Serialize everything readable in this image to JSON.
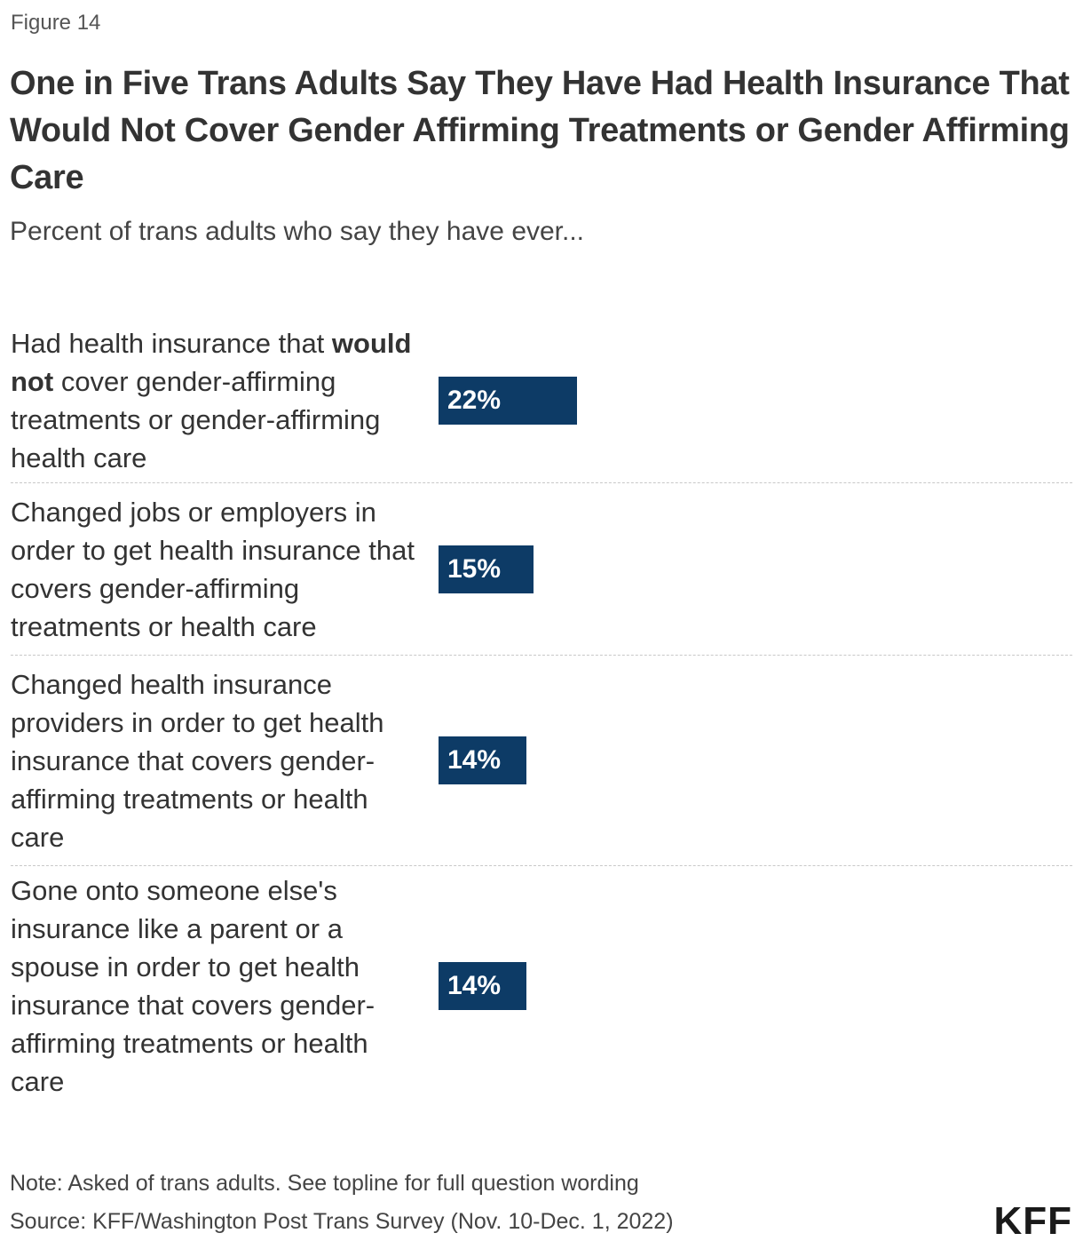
{
  "figure_label": "Figure 14",
  "title": "One in Five Trans Adults Say They Have Had Health Insurance That Would Not Cover Gender Affirming Treatments or Gender Affirming Care",
  "subtitle": "Percent of trans adults who say they have ever...",
  "chart_data": {
    "type": "bar",
    "orientation": "horizontal",
    "title": "One in Five Trans Adults Say They Have Had Health Insurance That Would Not Cover Gender Affirming Treatments or Gender Affirming Care",
    "subtitle": "Percent of trans adults who say they have ever...",
    "categories": [
      "Had health insurance that would not cover gender-affirming treatments or gender-affirming health care",
      "Changed jobs or employers in order to get health insurance that covers gender-affirming treatments or health care",
      "Changed health insurance providers in order to get health insurance that covers gender-affirming treatments or health care",
      "Gone onto someone else's insurance like a parent or a spouse in order to get health insurance that covers gender-affirming treatments or health care"
    ],
    "values": [
      22,
      15,
      14,
      14
    ],
    "value_labels": [
      "22%",
      "15%",
      "14%",
      "14%"
    ],
    "xlim": [
      0,
      100
    ],
    "grid": false,
    "legend": "none",
    "bar_color": "#0d3b66"
  },
  "label_parts": [
    {
      "pre": "Had health insurance that ",
      "bold": "would not",
      "post": " cover gender-affirming treatments or gender-affirming health care"
    },
    {
      "pre": "Changed jobs or employers in order to get health insurance that covers gender-affirming treatments or health care",
      "bold": "",
      "post": ""
    },
    {
      "pre": "Changed health insurance providers in order to get health insurance that covers gender-affirming treatments or health care",
      "bold": "",
      "post": ""
    },
    {
      "pre": "Gone onto someone else's insurance like a parent or a spouse in order to get health insurance that covers gender-affirming treatments or health care",
      "bold": "",
      "post": ""
    }
  ],
  "note": "Note: Asked of trans adults. See topline for full question wording",
  "source": "Source: KFF/Washington Post Trans Survey (Nov. 10-Dec. 1, 2022)",
  "logo_text": "KFF"
}
